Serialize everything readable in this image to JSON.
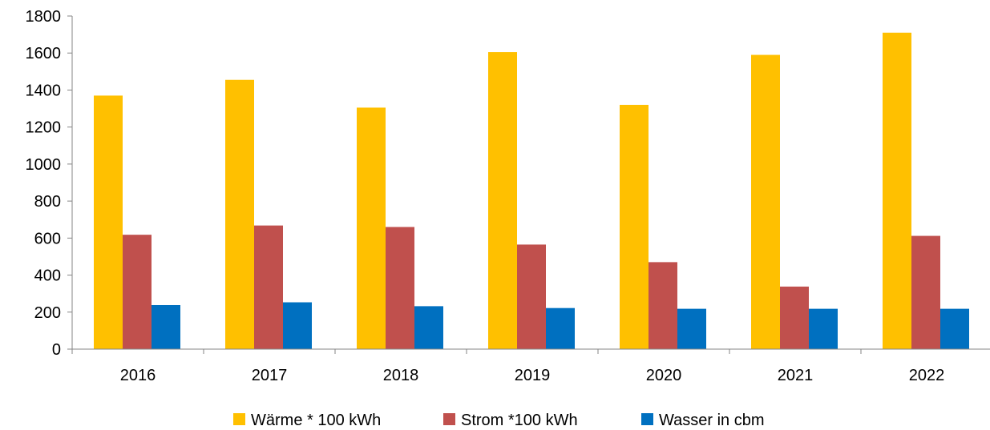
{
  "chart_data": {
    "type": "bar",
    "title": "",
    "xlabel": "",
    "ylabel": "",
    "categories": [
      "2016",
      "2017",
      "2018",
      "2019",
      "2020",
      "2021",
      "2022"
    ],
    "ylim": [
      0,
      1800
    ],
    "yticks": [
      0,
      200,
      400,
      600,
      800,
      1000,
      1200,
      1400,
      1600,
      1800
    ],
    "grid": false,
    "legend_position": "bottom",
    "series": [
      {
        "name": "Wärme * 100 kWh",
        "color": "#FFC000",
        "values": [
          1370,
          1455,
          1305,
          1605,
          1320,
          1590,
          1710
        ]
      },
      {
        "name": "Strom *100 kWh",
        "color": "#C0504D",
        "values": [
          618,
          668,
          660,
          565,
          470,
          338,
          612
        ]
      },
      {
        "name": "Wasser in cbm",
        "color": "#0070C0",
        "values": [
          238,
          253,
          232,
          222,
          218,
          218,
          218
        ]
      }
    ]
  }
}
